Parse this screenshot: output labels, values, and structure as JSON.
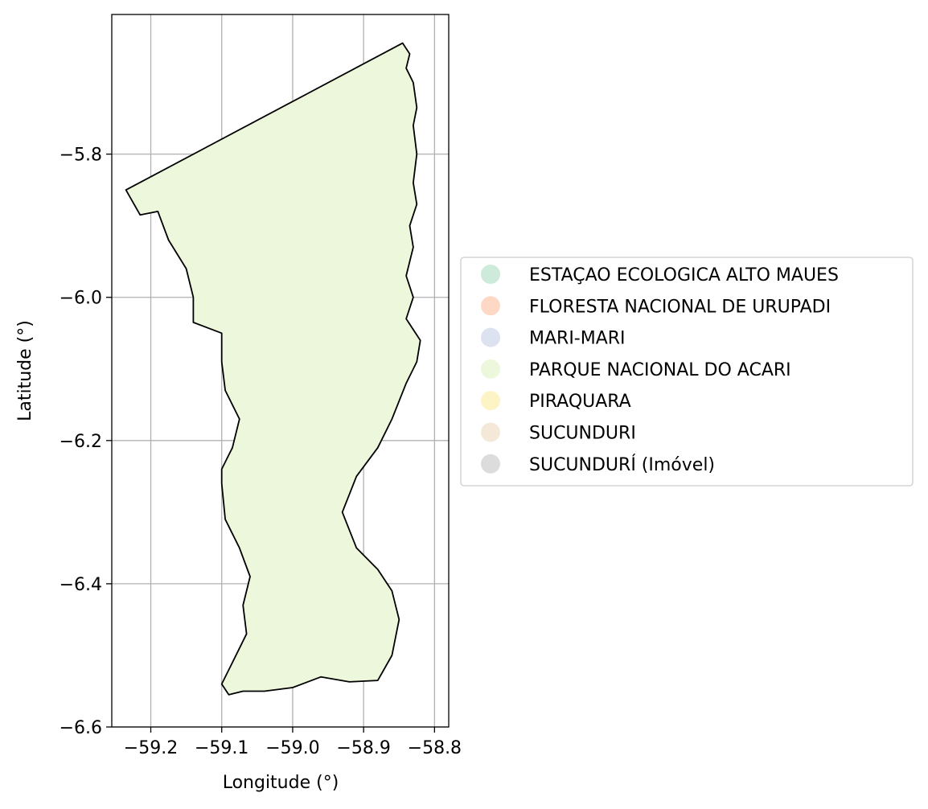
{
  "chart_data": {
    "type": "choropleth",
    "title": "",
    "xlabel": "Longitude (°)",
    "ylabel": "Latitude (°)",
    "xlim": [
      -59.255,
      -58.78
    ],
    "ylim": [
      -6.6,
      -5.605
    ],
    "x_ticks": [
      {
        "value": -59.2,
        "label": "−59.2"
      },
      {
        "value": -59.1,
        "label": "−59.1"
      },
      {
        "value": -59.0,
        "label": "−59.0"
      },
      {
        "value": -58.9,
        "label": "−58.9"
      },
      {
        "value": -58.8,
        "label": "−58.8"
      }
    ],
    "y_ticks": [
      {
        "value": -5.8,
        "label": "−5.8"
      },
      {
        "value": -6.0,
        "label": "−6.0"
      },
      {
        "value": -6.2,
        "label": "−6.2"
      },
      {
        "value": -6.4,
        "label": "−6.4"
      },
      {
        "value": -6.6,
        "label": "−6.6"
      }
    ],
    "grid": true,
    "legend_position": "right",
    "legend": [
      {
        "label": "ESTAÇAO ECOLOGICA ALTO MAUES",
        "color": "#cdeadb"
      },
      {
        "label": "FLORESTA NACIONAL DE URUPADI",
        "color": "#fdd9c5"
      },
      {
        "label": "MARI-MARI",
        "color": "#dde2f0"
      },
      {
        "label": "PARQUE NACIONAL DO ACARI",
        "color": "#edf7dc"
      },
      {
        "label": "PIRAQUARA",
        "color": "#fdf4c6"
      },
      {
        "label": "SUCUNDURI",
        "color": "#f4e9d9"
      },
      {
        "label": "SUCUNDURÍ (Imóvel)",
        "color": "#dcdcdc"
      }
    ],
    "shown_region": "PARQUE NACIONAL DO ACARI",
    "region_fill": "#edf7dc",
    "region_outline": [
      [
        -58.845,
        -5.645
      ],
      [
        -58.835,
        -5.66
      ],
      [
        -58.84,
        -5.68
      ],
      [
        -58.83,
        -5.7
      ],
      [
        -58.825,
        -5.735
      ],
      [
        -58.83,
        -5.76
      ],
      [
        -58.825,
        -5.8
      ],
      [
        -58.83,
        -5.84
      ],
      [
        -58.825,
        -5.87
      ],
      [
        -58.835,
        -5.9
      ],
      [
        -58.83,
        -5.93
      ],
      [
        -58.84,
        -5.97
      ],
      [
        -58.83,
        -6.0
      ],
      [
        -58.84,
        -6.03
      ],
      [
        -58.82,
        -6.06
      ],
      [
        -58.825,
        -6.09
      ],
      [
        -58.84,
        -6.12
      ],
      [
        -58.86,
        -6.17
      ],
      [
        -58.88,
        -6.21
      ],
      [
        -58.91,
        -6.25
      ],
      [
        -58.93,
        -6.3
      ],
      [
        -58.91,
        -6.35
      ],
      [
        -58.88,
        -6.38
      ],
      [
        -58.86,
        -6.41
      ],
      [
        -58.85,
        -6.45
      ],
      [
        -58.86,
        -6.5
      ],
      [
        -58.88,
        -6.535
      ],
      [
        -58.92,
        -6.537
      ],
      [
        -58.96,
        -6.53
      ],
      [
        -59.0,
        -6.545
      ],
      [
        -59.04,
        -6.55
      ],
      [
        -59.07,
        -6.55
      ],
      [
        -59.09,
        -6.555
      ],
      [
        -59.1,
        -6.54
      ],
      [
        -59.085,
        -6.51
      ],
      [
        -59.065,
        -6.47
      ],
      [
        -59.07,
        -6.43
      ],
      [
        -59.06,
        -6.39
      ],
      [
        -59.075,
        -6.35
      ],
      [
        -59.095,
        -6.31
      ],
      [
        -59.1,
        -6.26
      ],
      [
        -59.1,
        -6.24
      ],
      [
        -59.085,
        -6.21
      ],
      [
        -59.075,
        -6.17
      ],
      [
        -59.095,
        -6.13
      ],
      [
        -59.1,
        -6.09
      ],
      [
        -59.1,
        -6.05
      ],
      [
        -59.14,
        -6.035
      ],
      [
        -59.14,
        -6.0
      ],
      [
        -59.15,
        -5.96
      ],
      [
        -59.175,
        -5.92
      ],
      [
        -59.19,
        -5.88
      ],
      [
        -59.215,
        -5.885
      ],
      [
        -59.235,
        -5.85
      ],
      [
        -58.845,
        -5.645
      ]
    ]
  }
}
